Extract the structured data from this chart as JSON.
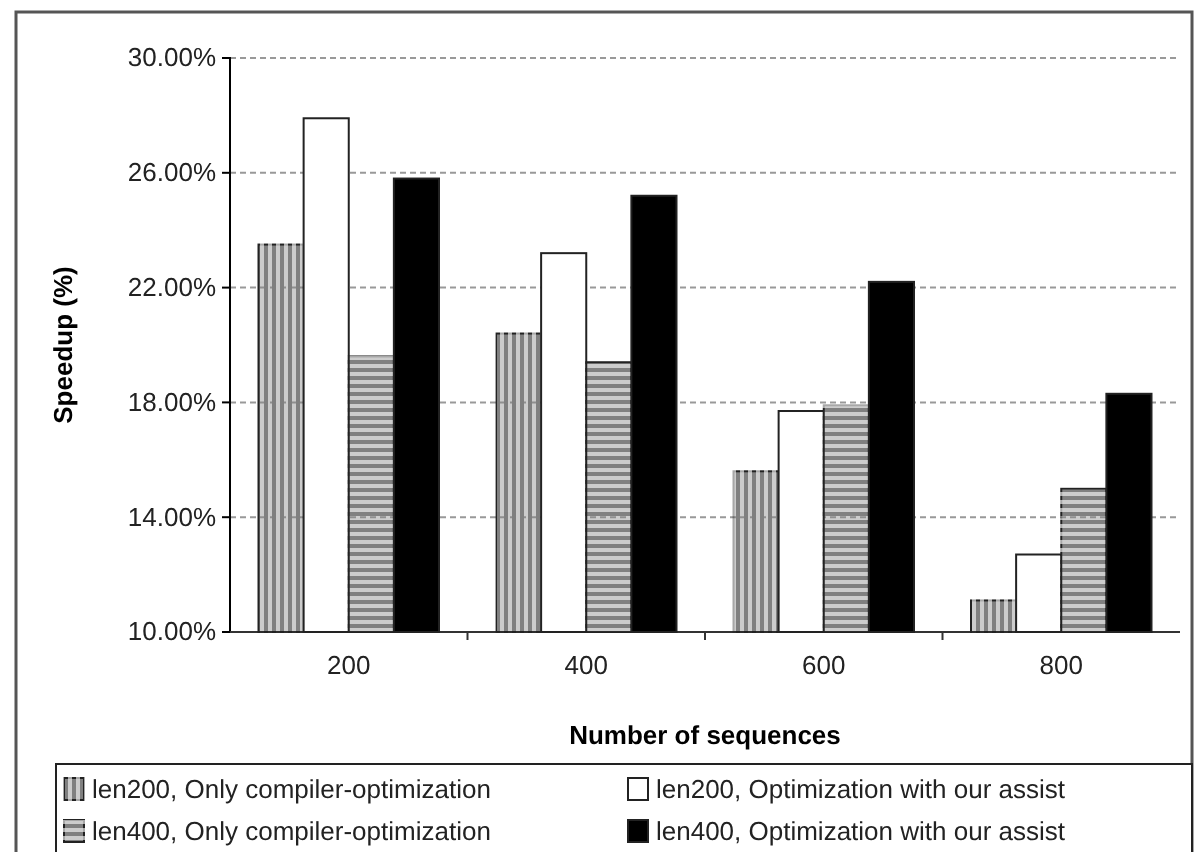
{
  "chart_data": {
    "type": "bar",
    "xlabel": "Number of sequences",
    "ylabel": "Speedup (%)",
    "categories": [
      "200",
      "400",
      "600",
      "800"
    ],
    "series": [
      {
        "name": "len200, Only compiler-optimization",
        "color": "#808080",
        "values": [
          23.5,
          20.4,
          15.6,
          11.1
        ]
      },
      {
        "name": "len200, Optimization with our assist",
        "color": "#ffffff",
        "values": [
          27.9,
          23.2,
          17.7,
          12.7
        ]
      },
      {
        "name": "len400, Only compiler-optimization",
        "color": "#808080",
        "values": [
          19.6,
          19.4,
          17.9,
          15.0
        ]
      },
      {
        "name": "len400, Optimization with our assist",
        "color": "#000000",
        "values": [
          25.8,
          25.2,
          22.2,
          18.3
        ]
      }
    ],
    "ylim": [
      10,
      30
    ],
    "yticks": [
      {
        "value": 10,
        "label": "10.00%"
      },
      {
        "value": 14,
        "label": "14.00%"
      },
      {
        "value": 18,
        "label": "18.00%"
      },
      {
        "value": 22,
        "label": "22.00%"
      },
      {
        "value": 26,
        "label": "26.00%"
      },
      {
        "value": 30,
        "label": "30.00%"
      }
    ],
    "grid": "y",
    "legend": "bottom"
  }
}
